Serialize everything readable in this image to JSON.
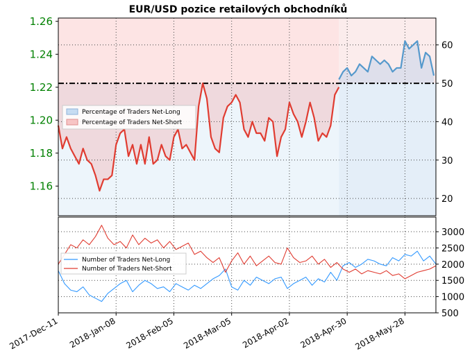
{
  "chart_data": [
    {
      "type": "line",
      "title": "EUR/USD pozice retailových obchodníků",
      "x_tick_labels": [
        "2017-Dec-11",
        "2018-Jan-08",
        "2018-Feb-05",
        "2018-Mar-05",
        "2018-Apr-02",
        "2018-Apr-30",
        "2018-May-28"
      ],
      "x_tick_dates": [
        "2017-12-11",
        "2018-01-08",
        "2018-02-05",
        "2018-03-05",
        "2018-04-02",
        "2018-04-30",
        "2018-05-28"
      ],
      "x_range": [
        "2017-12-11",
        "2018-06-12"
      ],
      "left_axis": {
        "label": "",
        "ticks": [
          1.16,
          1.18,
          1.2,
          1.22,
          1.24,
          1.26
        ],
        "range": [
          1.142,
          1.262
        ],
        "color": "#008000"
      },
      "right_axis": {
        "label": "",
        "ticks": [
          20,
          30,
          40,
          50,
          60
        ],
        "range": [
          15.5,
          67
        ]
      },
      "grid": "dotted",
      "reference_line": 50,
      "legend": {
        "position": "left",
        "entries": [
          "Percentage of Traders Net-Long",
          "Percentage of Traders Net-Short"
        ]
      },
      "series": [
        {
          "name": "Percentage of Traders Net-Short",
          "color": "#e03c31",
          "x": [
            "2017-12-11",
            "2017-12-13",
            "2017-12-15",
            "2017-12-17",
            "2017-12-19",
            "2017-12-21",
            "2017-12-23",
            "2017-12-25",
            "2017-12-27",
            "2017-12-29",
            "2017-12-31",
            "2018-01-02",
            "2018-01-04",
            "2018-01-06",
            "2018-01-08",
            "2018-01-10",
            "2018-01-12",
            "2018-01-14",
            "2018-01-16",
            "2018-01-18",
            "2018-01-20",
            "2018-01-22",
            "2018-01-24",
            "2018-01-26",
            "2018-01-28",
            "2018-01-30",
            "2018-02-01",
            "2018-02-03",
            "2018-02-05",
            "2018-02-07",
            "2018-02-09",
            "2018-02-11",
            "2018-02-13",
            "2018-02-15",
            "2018-02-17",
            "2018-02-19",
            "2018-02-21",
            "2018-02-23",
            "2018-02-25",
            "2018-02-27",
            "2018-03-01",
            "2018-03-03",
            "2018-03-05",
            "2018-03-07",
            "2018-03-09",
            "2018-03-11",
            "2018-03-13",
            "2018-03-15",
            "2018-03-17",
            "2018-03-19",
            "2018-03-21",
            "2018-03-23",
            "2018-03-25",
            "2018-03-27",
            "2018-03-29",
            "2018-03-31",
            "2018-04-02",
            "2018-04-04",
            "2018-04-06",
            "2018-04-08",
            "2018-04-10",
            "2018-04-12",
            "2018-04-14",
            "2018-04-16",
            "2018-04-18",
            "2018-04-20",
            "2018-04-22",
            "2018-04-24",
            "2018-04-26"
          ],
          "values": [
            39,
            33,
            36,
            33,
            31,
            29,
            33,
            30,
            29,
            26,
            22,
            25,
            25,
            26,
            34,
            37,
            38,
            31,
            34,
            29,
            34,
            29,
            36,
            29,
            30,
            34,
            31,
            30,
            36,
            38,
            33,
            34,
            32,
            30,
            44,
            50,
            46,
            36,
            33,
            32,
            41,
            44,
            45,
            47,
            45,
            38,
            36,
            40,
            37,
            37,
            35,
            41,
            40,
            31,
            36,
            38,
            45,
            42,
            40,
            36,
            40,
            45,
            41,
            35,
            37,
            36,
            39,
            47,
            49
          ]
        },
        {
          "name": "Percentage of Traders Net-Long",
          "color": "#5599cc",
          "x": [
            "2018-04-26",
            "2018-04-28",
            "2018-04-30",
            "2018-05-02",
            "2018-05-04",
            "2018-05-06",
            "2018-05-08",
            "2018-05-10",
            "2018-05-12",
            "2018-05-14",
            "2018-05-16",
            "2018-05-18",
            "2018-05-20",
            "2018-05-22",
            "2018-05-24",
            "2018-05-26",
            "2018-05-28",
            "2018-05-30",
            "2018-06-01",
            "2018-06-03",
            "2018-06-05",
            "2018-06-07",
            "2018-06-09",
            "2018-06-11"
          ],
          "values": [
            51,
            53,
            54,
            52,
            53,
            55,
            54,
            53,
            57,
            56,
            55,
            56,
            55,
            53,
            54,
            54,
            61,
            59,
            60,
            61,
            54,
            58,
            57,
            52
          ]
        }
      ]
    },
    {
      "type": "line",
      "title": "",
      "x_range": [
        "2017-12-11",
        "2018-06-12"
      ],
      "right_axis": {
        "label": "",
        "ticks": [
          500,
          1000,
          1500,
          2000,
          2500,
          3000
        ],
        "range": [
          500,
          3450
        ]
      },
      "grid": "dotted",
      "legend": {
        "position": "left",
        "entries": [
          "Number of Traders Net-Long",
          "Number of Traders Net-Short"
        ]
      },
      "series": [
        {
          "name": "Number of Traders Net-Long",
          "color": "#3399ff",
          "x": [
            "2017-12-11",
            "2017-12-14",
            "2017-12-17",
            "2017-12-20",
            "2017-12-23",
            "2017-12-26",
            "2017-12-29",
            "2018-01-01",
            "2018-01-04",
            "2018-01-07",
            "2018-01-10",
            "2018-01-13",
            "2018-01-16",
            "2018-01-19",
            "2018-01-22",
            "2018-01-25",
            "2018-01-28",
            "2018-01-31",
            "2018-02-03",
            "2018-02-06",
            "2018-02-09",
            "2018-02-12",
            "2018-02-15",
            "2018-02-18",
            "2018-02-21",
            "2018-02-24",
            "2018-02-27",
            "2018-03-02",
            "2018-03-05",
            "2018-03-08",
            "2018-03-11",
            "2018-03-14",
            "2018-03-17",
            "2018-03-20",
            "2018-03-23",
            "2018-03-26",
            "2018-03-29",
            "2018-04-01",
            "2018-04-04",
            "2018-04-07",
            "2018-04-10",
            "2018-04-13",
            "2018-04-16",
            "2018-04-19",
            "2018-04-22",
            "2018-04-25",
            "2018-04-28",
            "2018-05-01",
            "2018-05-04",
            "2018-05-07",
            "2018-05-10",
            "2018-05-13",
            "2018-05-16",
            "2018-05-19",
            "2018-05-22",
            "2018-05-25",
            "2018-05-28",
            "2018-05-31",
            "2018-06-03",
            "2018-06-06",
            "2018-06-09",
            "2018-06-12"
          ],
          "values": [
            1800,
            1400,
            1200,
            1150,
            1300,
            1050,
            950,
            850,
            1100,
            1250,
            1400,
            1500,
            1150,
            1350,
            1500,
            1400,
            1250,
            1300,
            1150,
            1400,
            1300,
            1200,
            1350,
            1250,
            1400,
            1550,
            1650,
            1850,
            1300,
            1200,
            1500,
            1350,
            1600,
            1500,
            1400,
            1550,
            1600,
            1250,
            1400,
            1500,
            1600,
            1350,
            1550,
            1450,
            1750,
            1500,
            1950,
            2050,
            1900,
            2000,
            2150,
            2100,
            2000,
            1950,
            2200,
            2100,
            2300,
            2250,
            2400,
            2100,
            2250,
            2000
          ]
        },
        {
          "name": "Number of Traders Net-Short",
          "color": "#e03c31",
          "x": [
            "2017-12-11",
            "2017-12-14",
            "2017-12-17",
            "2017-12-20",
            "2017-12-23",
            "2017-12-26",
            "2017-12-29",
            "2018-01-01",
            "2018-01-04",
            "2018-01-07",
            "2018-01-10",
            "2018-01-13",
            "2018-01-16",
            "2018-01-19",
            "2018-01-22",
            "2018-01-25",
            "2018-01-28",
            "2018-01-31",
            "2018-02-03",
            "2018-02-06",
            "2018-02-09",
            "2018-02-12",
            "2018-02-15",
            "2018-02-18",
            "2018-02-21",
            "2018-02-24",
            "2018-02-27",
            "2018-03-02",
            "2018-03-05",
            "2018-03-08",
            "2018-03-11",
            "2018-03-14",
            "2018-03-17",
            "2018-03-20",
            "2018-03-23",
            "2018-03-26",
            "2018-03-29",
            "2018-04-01",
            "2018-04-04",
            "2018-04-07",
            "2018-04-10",
            "2018-04-13",
            "2018-04-16",
            "2018-04-19",
            "2018-04-22",
            "2018-04-25",
            "2018-04-28",
            "2018-05-01",
            "2018-05-04",
            "2018-05-07",
            "2018-05-10",
            "2018-05-13",
            "2018-05-16",
            "2018-05-19",
            "2018-05-22",
            "2018-05-25",
            "2018-05-28",
            "2018-05-31",
            "2018-06-03",
            "2018-06-06",
            "2018-06-09",
            "2018-06-12"
          ],
          "values": [
            2000,
            2300,
            2600,
            2500,
            2750,
            2600,
            2850,
            3200,
            2800,
            2600,
            2700,
            2500,
            2900,
            2600,
            2800,
            2650,
            2750,
            2500,
            2700,
            2450,
            2550,
            2650,
            2300,
            2400,
            2200,
            2050,
            2200,
            1750,
            2100,
            2350,
            2000,
            2250,
            1950,
            2100,
            2250,
            2050,
            2000,
            2500,
            2200,
            2050,
            2100,
            2250,
            2000,
            2150,
            1900,
            2050,
            1850,
            1750,
            1850,
            1700,
            1800,
            1750,
            1700,
            1800,
            1650,
            1700,
            1550,
            1650,
            1750,
            1800,
            1850,
            1950
          ]
        }
      ]
    }
  ]
}
